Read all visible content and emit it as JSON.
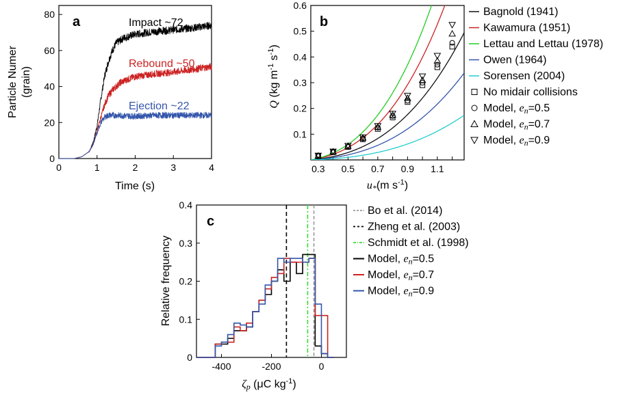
{
  "chart_data": [
    {
      "panel_label": "a",
      "type": "line",
      "xlabel": "Time (s)",
      "ylabel": [
        "Particle Numer",
        "(grain)"
      ],
      "xlim": [
        0,
        4
      ],
      "ylim": [
        0,
        85
      ],
      "xticks": [
        "0",
        "1",
        "2",
        "3",
        "4"
      ],
      "yticks": [
        "0",
        "20",
        "40",
        "60",
        "80"
      ],
      "series": [
        {
          "name": "Impact ~72",
          "color": "#000000",
          "plateau": 72,
          "noise": 2.2,
          "x": [
            0,
            0.4,
            0.6,
            0.8,
            0.9,
            1.0,
            1.1,
            1.2,
            1.3,
            1.4,
            1.5,
            1.7,
            2.0,
            2.5,
            3.0,
            3.5,
            4.0
          ],
          "y": [
            0,
            0,
            1,
            4,
            9,
            18,
            33,
            46,
            54,
            60,
            64,
            67,
            69,
            70.5,
            71.5,
            72.5,
            74
          ]
        },
        {
          "name": "Rebound ~50",
          "color": "#cc2222",
          "plateau": 50,
          "noise": 2.0,
          "x": [
            0,
            0.4,
            0.6,
            0.8,
            0.9,
            1.0,
            1.1,
            1.2,
            1.3,
            1.4,
            1.6,
            1.8,
            2.0,
            2.5,
            3.0,
            3.5,
            4.0
          ],
          "y": [
            0,
            0,
            1,
            4,
            8,
            15,
            23,
            30,
            35,
            38,
            42,
            44,
            45.5,
            47,
            48,
            49.5,
            51
          ]
        },
        {
          "name": "Ejection ~22",
          "color": "#3355aa",
          "plateau": 22,
          "noise": 1.8,
          "x": [
            0,
            0.4,
            0.6,
            0.8,
            0.9,
            1.0,
            1.1,
            1.2,
            1.3,
            1.5,
            2.0,
            2.5,
            3.0,
            3.5,
            4.0
          ],
          "y": [
            0,
            0,
            1,
            4,
            8,
            14,
            20,
            23,
            24,
            24,
            23.5,
            24,
            24,
            24,
            24
          ]
        }
      ]
    },
    {
      "panel_label": "b",
      "type": "line",
      "xlabel": "m s",
      "xlabel_symbol": "u",
      "xlabel_subscript": "*",
      "xlabel_sup": "-1",
      "ylabel_symbol": "Q",
      "ylabel": "kg m",
      "ylabel_sup1": "-1",
      "ylabel_mid": " s",
      "ylabel_sup2": "-1",
      "xlim": [
        0.25,
        1.28
      ],
      "ylim": [
        0,
        0.6
      ],
      "xticks": [
        "0.3",
        "0.4",
        "0.5",
        "0.6",
        "0.7",
        "0.8",
        "0.9",
        "1.0",
        "1.1",
        "1.2"
      ],
      "yticks": [
        "0.1",
        "0.2",
        "0.3",
        "0.4",
        "0.5",
        "0.6"
      ],
      "curves": [
        {
          "name": "Bagnold (1941)",
          "color": "#111111",
          "coef": 0.205
        },
        {
          "name": "Kawamura (1951)",
          "color": "#cc2222",
          "coef": 0.34
        },
        {
          "name": "Lettau and Lettau (1978)",
          "color": "#22cc22",
          "coef": 0.43
        },
        {
          "name": "Owen (1964)",
          "color": "#3355aa",
          "coef": 0.14
        },
        {
          "name": "Sorensen (2004)",
          "color": "#22cccc",
          "coef": 0.072
        }
      ],
      "markers": [
        {
          "name": "No midair collisions",
          "shape": "square",
          "x": [
            0.3,
            0.4,
            0.5,
            0.6,
            0.7,
            0.8,
            0.9,
            1.0,
            1.1,
            1.2
          ],
          "y": [
            0.015,
            0.03,
            0.05,
            0.08,
            0.12,
            0.165,
            0.225,
            0.29,
            0.36,
            0.44
          ]
        },
        {
          "name": "Model, ",
          "sym": "e",
          "sub": "n",
          "val": "=0.5",
          "shape": "circle",
          "x": [
            0.3,
            0.4,
            0.5,
            0.6,
            0.7,
            0.8,
            0.9,
            1.0,
            1.1,
            1.2
          ],
          "y": [
            0.016,
            0.031,
            0.052,
            0.083,
            0.125,
            0.17,
            0.23,
            0.3,
            0.37,
            0.455
          ]
        },
        {
          "name": "Model, ",
          "sym": "e",
          "sub": "n",
          "val": "=0.7",
          "shape": "triangle",
          "x": [
            0.3,
            0.4,
            0.5,
            0.6,
            0.7,
            0.8,
            0.9,
            1.0,
            1.1,
            1.2
          ],
          "y": [
            0.016,
            0.032,
            0.054,
            0.086,
            0.128,
            0.175,
            0.24,
            0.31,
            0.385,
            0.49
          ]
        },
        {
          "name": "Model, ",
          "sym": "e",
          "sub": "n",
          "val": "=0.9",
          "shape": "triangle-down",
          "x": [
            0.3,
            0.4,
            0.5,
            0.6,
            0.7,
            0.8,
            0.9,
            1.0,
            1.1,
            1.2
          ],
          "y": [
            0.017,
            0.033,
            0.055,
            0.088,
            0.132,
            0.18,
            0.25,
            0.325,
            0.405,
            0.525
          ]
        }
      ]
    },
    {
      "panel_label": "c",
      "type": "histogram",
      "xlabel_symbol": "ζ",
      "xlabel_subscript": "p",
      "xlabel": "μC kg",
      "xlabel_sup": "-1",
      "ylabel": "Relative frequency",
      "xlim": [
        -500,
        100
      ],
      "ylim": [
        0,
        0.4
      ],
      "xticks": [
        "-400",
        "-200",
        "0"
      ],
      "yticks": [
        "0",
        "0.1",
        "0.2",
        "0.3",
        "0.4"
      ],
      "vlines": [
        {
          "name": "Bo et al. (2014)",
          "color": "#999999",
          "dash": "5,3",
          "x": -30
        },
        {
          "name": "Zheng et al. (2003)",
          "color": "#000000",
          "dash": "6,4",
          "x": -140
        },
        {
          "name": "Schmidt et al. (1998)",
          "color": "#33dd33",
          "dash": "6,3,2,3",
          "x": -55
        }
      ],
      "bin_edges": [
        -500,
        -425,
        -400,
        -375,
        -350,
        -325,
        -300,
        -275,
        -250,
        -225,
        -200,
        -175,
        -150,
        -125,
        -100,
        -75,
        -50,
        -25,
        0,
        25,
        50
      ],
      "histograms": [
        {
          "name": "Model, ",
          "sym": "e",
          "sub": "n",
          "val": "=0.5",
          "color": "#000000",
          "values": [
            0,
            0.035,
            0.035,
            0.05,
            0.07,
            0.07,
            0.08,
            0.12,
            0.15,
            0.165,
            0.2,
            0.23,
            0.2,
            0.25,
            0.22,
            0.27,
            0.27,
            0.03,
            0.01,
            0
          ]
        },
        {
          "name": "Model, ",
          "sym": "e",
          "sub": "n",
          "val": "=0.7",
          "color": "#cc2222",
          "values": [
            0,
            0.035,
            0.04,
            0.04,
            0.08,
            0.07,
            0.09,
            0.12,
            0.15,
            0.18,
            0.21,
            0.22,
            0.26,
            0.25,
            0.25,
            0.25,
            0.26,
            0.11,
            0.11,
            0
          ]
        },
        {
          "name": "Model, ",
          "sym": "e",
          "sub": "n",
          "val": "=0.9",
          "color": "#3355aa",
          "values": [
            0,
            0.03,
            0.04,
            0.06,
            0.09,
            0.085,
            0.08,
            0.12,
            0.14,
            0.19,
            0.2,
            0.26,
            0.25,
            0.26,
            0.26,
            0.25,
            0.26,
            0.14,
            0.01,
            0
          ]
        }
      ]
    }
  ]
}
